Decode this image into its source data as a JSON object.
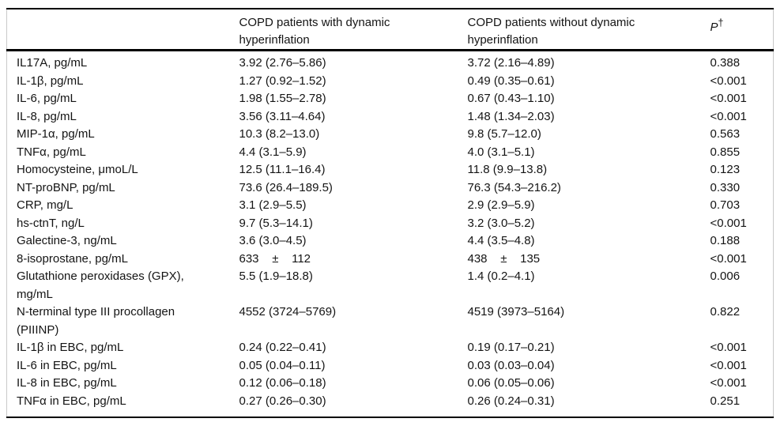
{
  "table": {
    "header": {
      "label_col": "",
      "with_dh": "COPD patients with dynamic hyperinflation",
      "without_dh": "COPD patients without dynamic hyperinflation",
      "p_label": "P",
      "p_superscript": "†"
    },
    "rows": [
      {
        "label": "IL17A, pg/mL",
        "with_dh": "3.92 (2.76–5.86)",
        "without_dh": "3.72 (2.16–4.89)",
        "p": "0.388"
      },
      {
        "label": "IL-1β, pg/mL",
        "with_dh": "1.27 (0.92–1.52)",
        "without_dh": "0.49 (0.35–0.61)",
        "p": "<0.001"
      },
      {
        "label": "IL-6, pg/mL",
        "with_dh": "1.98 (1.55–2.78)",
        "without_dh": "0.67 (0.43–1.10)",
        "p": "<0.001"
      },
      {
        "label": "IL-8, pg/mL",
        "with_dh": "3.56 (3.11–4.64)",
        "without_dh": "1.48 (1.34–2.03)",
        "p": "<0.001"
      },
      {
        "label": "MIP-1α, pg/mL",
        "with_dh": "10.3 (8.2–13.0)",
        "without_dh": "9.8 (5.7–12.0)",
        "p": "0.563"
      },
      {
        "label": "TNFα, pg/mL",
        "with_dh": "4.4 (3.1–5.9)",
        "without_dh": "4.0 (3.1–5.1)",
        "p": "0.855"
      },
      {
        "label": "Homocysteine, μmoL/L",
        "with_dh": "12.5 (11.1–16.4)",
        "without_dh": "11.8 (9.9–13.8)",
        "p": "0.123"
      },
      {
        "label": "NT-proBNP, pg/mL",
        "with_dh": "73.6 (26.4–189.5)",
        "without_dh": "76.3 (54.3–216.2)",
        "p": "0.330"
      },
      {
        "label": "CRP, mg/L",
        "with_dh": "3.1 (2.9–5.5)",
        "without_dh": "2.9 (2.9–5.9)",
        "p": "0.703"
      },
      {
        "label": "hs-ctnT, ng/L",
        "with_dh": "9.7 (5.3–14.1)",
        "without_dh": "3.2 (3.0–5.2)",
        "p": "<0.001"
      },
      {
        "label": "Galectine-3, ng/mL",
        "with_dh": "3.6 (3.0–4.5)",
        "without_dh": "4.4 (3.5–4.8)",
        "p": "0.188"
      },
      {
        "label": "8-isoprostane, pg/mL",
        "with_dh": "633    ±    112",
        "without_dh": "438    ±    135",
        "p": "<0.001"
      },
      {
        "label": "Glutathione peroxidases (GPX), mg/mL",
        "with_dh": "5.5 (1.9–18.8)",
        "without_dh": "1.4 (0.2–4.1)",
        "p": "0.006"
      },
      {
        "label": "N-terminal type III procollagen (PIIINP)",
        "with_dh": "4552 (3724–5769)",
        "without_dh": "4519 (3973–5164)",
        "p": "0.822"
      },
      {
        "label": "IL-1β in EBC, pg/mL",
        "with_dh": "0.24 (0.22–0.41)",
        "without_dh": "0.19 (0.17–0.21)",
        "p": "<0.001"
      },
      {
        "label": "IL-6 in EBC, pg/mL",
        "with_dh": "0.05 (0.04–0.11)",
        "without_dh": "0.03 (0.03–0.04)",
        "p": "<0.001"
      },
      {
        "label": "IL-8 in EBC, pg/mL",
        "with_dh": "0.12 (0.06–0.18)",
        "without_dh": "0.06 (0.05–0.06)",
        "p": "<0.001"
      },
      {
        "label": "TNFα in EBC, pg/mL",
        "with_dh": "0.27 (0.26–0.30)",
        "without_dh": "0.26 (0.24–0.31)",
        "p": "0.251"
      }
    ]
  },
  "colors": {
    "rule": "#000000",
    "side_rule": "#c9c9c9",
    "text": "#141414",
    "background": "#ffffff"
  }
}
